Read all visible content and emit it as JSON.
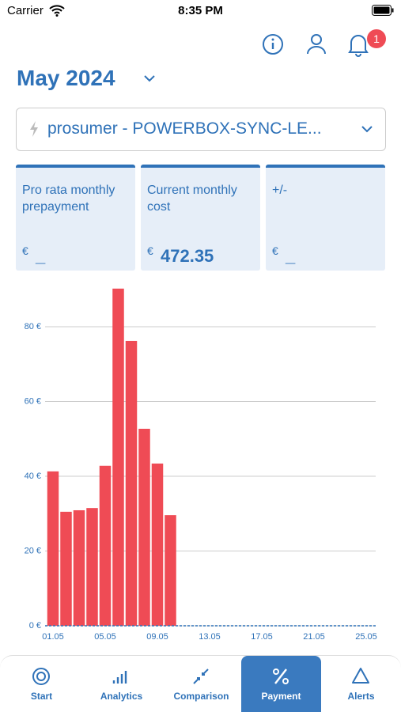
{
  "status_bar": {
    "carrier": "Carrier",
    "time": "8:35 PM"
  },
  "header": {
    "title": "May 2024",
    "notification_count": 1
  },
  "selector": {
    "label": "prosumer - POWERBOX-SYNC-LE..."
  },
  "cards": [
    {
      "label": "Pro rata monthly prepayment",
      "currency": "€",
      "value": "_"
    },
    {
      "label": "Current monthly cost",
      "currency": "€",
      "value": 472.35
    },
    {
      "label": "+/-",
      "currency": "€",
      "value": "_"
    }
  ],
  "chart_data": {
    "type": "bar",
    "categories": [
      "01.05",
      null,
      null,
      null,
      "05.05",
      null,
      null,
      null,
      "09.05",
      null,
      null,
      null,
      "13.05",
      null,
      null,
      null,
      "17.05",
      null,
      null,
      null,
      "21.05",
      null,
      null,
      null,
      "25.05"
    ],
    "values": [
      41.3,
      30.5,
      30.9,
      31.5,
      42.8,
      90.2,
      76.2,
      52.7,
      43.4,
      29.6,
      null,
      null,
      null,
      null,
      null,
      null,
      null,
      null,
      null,
      null,
      null,
      null,
      null,
      null,
      null
    ],
    "color": "#ef4b55",
    "ylim": [
      0,
      90
    ],
    "yticks": [
      {
        "value": 0,
        "label": "0 €"
      },
      {
        "value": 20,
        "label": "20 €"
      },
      {
        "value": 40,
        "label": "40 €"
      },
      {
        "value": 60,
        "label": "60 €"
      },
      {
        "value": 80,
        "label": "80 €"
      }
    ],
    "grid": true
  },
  "tabs": [
    "Start",
    "Analytics",
    "Comparison",
    "Payment",
    "Alerts"
  ],
  "active_tab": "Payment"
}
